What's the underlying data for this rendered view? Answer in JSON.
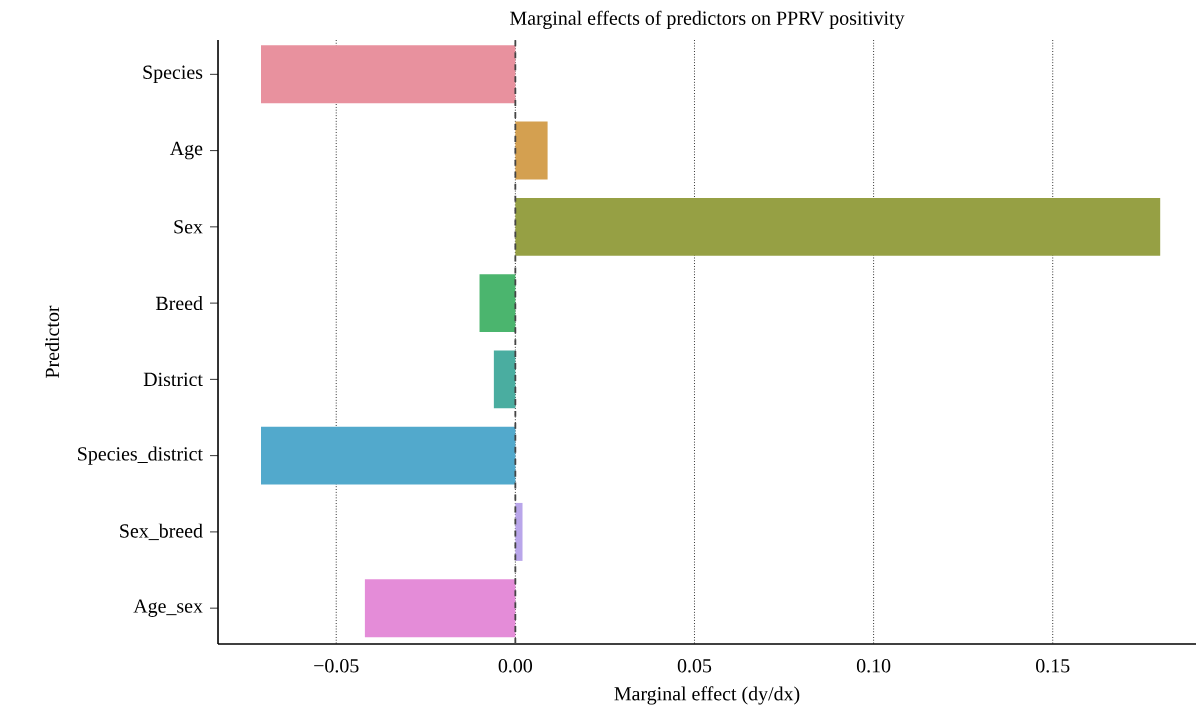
{
  "chart_data": {
    "type": "bar",
    "orientation": "horizontal",
    "title": "Marginal effects of predictors on PPRV positivity",
    "xlabel": "Marginal effect (dy/dx)",
    "ylabel": "Predictor",
    "categories": [
      "Species",
      "Age",
      "Sex",
      "Breed",
      "District",
      "Species_district",
      "Sex_breed",
      "Age_sex"
    ],
    "values": [
      -0.071,
      0.009,
      0.18,
      -0.01,
      -0.006,
      -0.071,
      0.002,
      -0.042
    ],
    "colors": [
      "#e8919e",
      "#d4a050",
      "#96a044",
      "#4bb56e",
      "#4aada0",
      "#52a9cc",
      "#b9a6ea",
      "#e48cd8"
    ],
    "xlim": [
      -0.083,
      0.19
    ],
    "xticks": [
      {
        "value": -0.05,
        "label": "−0.05"
      },
      {
        "value": 0,
        "label": "0.00"
      },
      {
        "value": 0.05,
        "label": "0.05"
      },
      {
        "value": 0.1,
        "label": "0.10"
      },
      {
        "value": 0.15,
        "label": "0.15"
      }
    ],
    "grid": "x",
    "ref_lines": [
      {
        "axis": "x",
        "value": 0,
        "line_style": "dashed",
        "color": "#444444"
      }
    ]
  }
}
